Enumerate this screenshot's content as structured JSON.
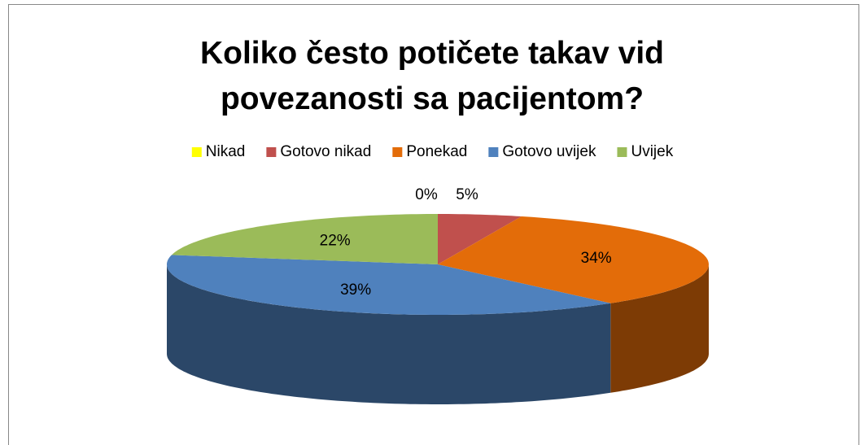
{
  "chart_data": {
    "type": "pie",
    "title": "Koliko često potičete takav vid povezanosti sa pacijentom?",
    "categories": [
      "Nikad",
      "Gotovo nikad",
      "Ponekad",
      "Gotovo uvijek",
      "Uvijek"
    ],
    "values": [
      0,
      5,
      34,
      39,
      22
    ],
    "value_labels": [
      "0%",
      "5%",
      "34%",
      "39%",
      "22%"
    ],
    "colors": [
      "#ffff00",
      "#c0504d",
      "#e36c09",
      "#4f81bd",
      "#9bbb59"
    ],
    "legend": "top"
  }
}
